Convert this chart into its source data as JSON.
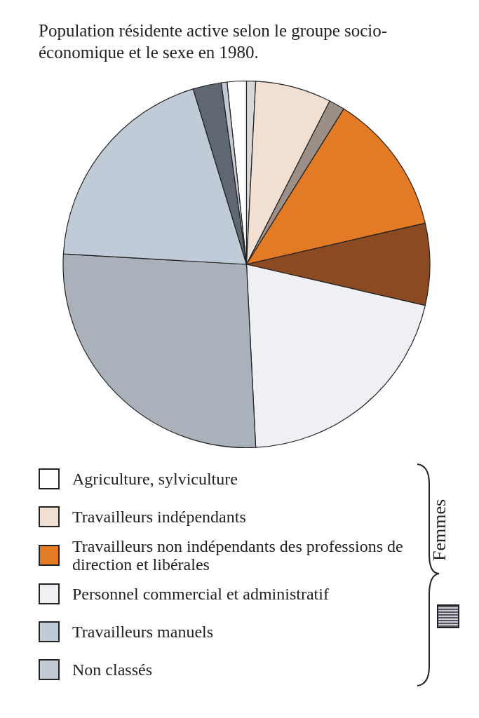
{
  "chart_data": {
    "type": "pie",
    "title": "Population résidente active selon le groupe socio-économique et le sexe en 1980.",
    "categories": [
      "Agriculture, sylviculture",
      null,
      "Travailleurs indépendants",
      null,
      "Travailleurs non indépendants des professions de direction et libérales",
      null,
      "Personnel commercial et administratif",
      null,
      "Travailleurs manuels",
      null,
      "Non classés"
    ],
    "values": [
      1.7,
      0.8,
      6.7,
      1.4,
      12.5,
      7.2,
      20.6,
      26.7,
      19.4,
      2.5,
      0.5
    ],
    "colors": [
      "#ffffff",
      "#d8d8d8",
      "#f1dfd2",
      "#9c8f88",
      "#e27a26",
      "#8c4a22",
      "#eef0f3",
      "#a9b1ba",
      "#c0cbd8",
      "#5f6872",
      "#c3cad4"
    ],
    "legend": "bottom",
    "legend_title": "Femmes"
  }
}
